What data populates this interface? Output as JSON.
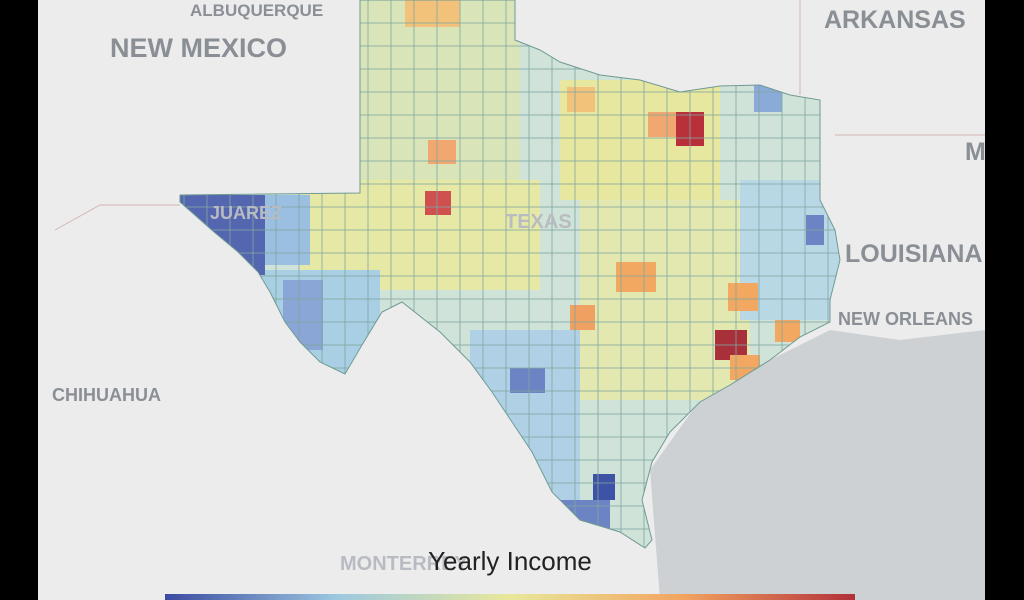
{
  "map": {
    "labels": [
      "ALBUQUERQUE",
      "NEW MEXICO",
      "ARKANSAS",
      "M",
      "LOUISIANA",
      "NEW ORLEANS",
      "CHIHUAHUA",
      "MONTERREY",
      "TEXAS",
      "JUAREZ"
    ],
    "legend": {
      "title": "Yearly Income"
    }
  }
}
